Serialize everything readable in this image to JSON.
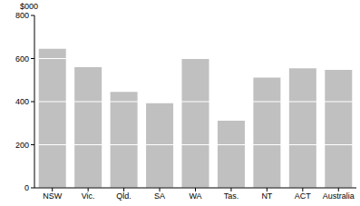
{
  "chart_data": {
    "type": "bar",
    "y_label": "$000",
    "categories": [
      "NSW",
      "Vic.",
      "Qld.",
      "SA",
      "WA",
      "Tas.",
      "NT",
      "ACT",
      "Australia"
    ],
    "values": [
      645,
      560,
      445,
      393,
      600,
      312,
      512,
      555,
      547
    ],
    "color": "#c0c0c0",
    "ylim": [
      0,
      800
    ],
    "yticks": [
      0,
      200,
      400,
      600,
      800
    ],
    "grid": true
  }
}
